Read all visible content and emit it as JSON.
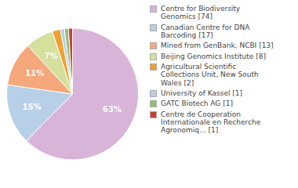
{
  "chart_data": {
    "type": "pie",
    "categories": [
      "Centre for Biodiversity\nGenomics [74]",
      "Canadian Centre for DNA\nBarcoding [17]",
      "Mined from GenBank, NCBI [13]",
      "Beijing Genomics Institute [8]",
      "Agricultural Scientific\nCollections Unit, New South\nWales [2]",
      "University of Kassel [1]",
      "GATC Biotech AG [1]",
      "Centre de Cooperation\nInternationale en Recherche\nAgronomiq... [1]"
    ],
    "values": [
      63,
      15,
      11,
      7,
      2,
      1,
      1,
      1
    ],
    "value_labels": [
      "63%",
      "15%",
      "11%",
      "7%",
      null,
      null,
      null,
      null
    ],
    "colors": [
      "#d8b4d8",
      "#b8cfe8",
      "#f4a87c",
      "#d4e09c",
      "#f0a030",
      "#b8cfe8",
      "#90c070",
      "#c84030"
    ],
    "data_labels": true,
    "legend": "right"
  }
}
